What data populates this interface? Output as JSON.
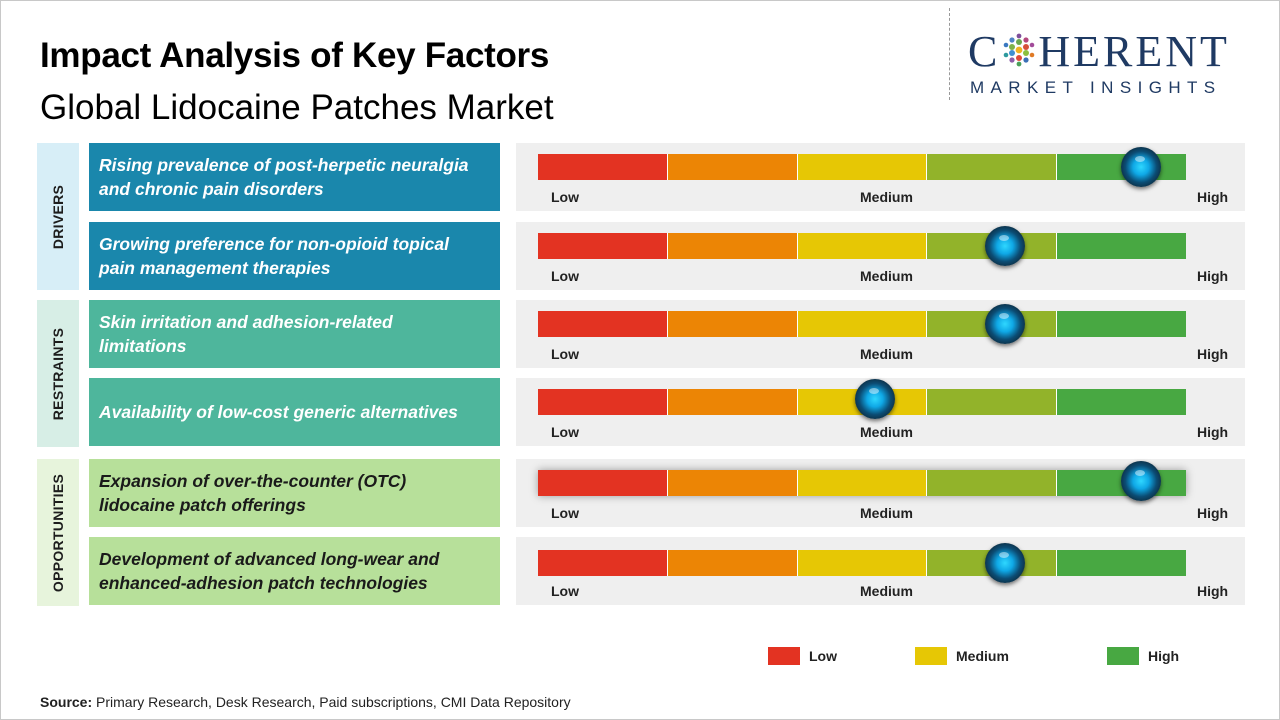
{
  "header": {
    "title": "Impact Analysis of Key Factors",
    "subtitle": "Global Lidocaine Patches Market"
  },
  "logo": {
    "main_left": "C",
    "main_right": "HERENT",
    "sub": "MARKET INSIGHTS"
  },
  "scale_labels": {
    "low": "Low",
    "medium": "Medium",
    "high": "High"
  },
  "colors": {
    "low": "#e33322",
    "low_medium": "#ec8505",
    "medium": "#e6c705",
    "medium_high": "#92b32a",
    "high": "#48a842",
    "drivers": "#1a87ac",
    "restraints": "#4eb69c",
    "opportunities": "#b7e09a"
  },
  "categories": [
    {
      "label": "DRIVERS"
    },
    {
      "label": "RESTRAINTS"
    },
    {
      "label": "OPPORTUNITIES"
    }
  ],
  "factors": [
    {
      "category": "DRIVERS",
      "line1": "Rising prevalence of post-herpetic neuralgia",
      "line2": "and chronic pain disorders",
      "impact_level": 0.93
    },
    {
      "category": "DRIVERS",
      "line1": "Growing preference for non-opioid topical",
      "line2": "pain management therapies",
      "impact_level": 0.72
    },
    {
      "category": "RESTRAINTS",
      "line1": "Skin irritation and adhesion-related",
      "line2": "limitations",
      "impact_level": 0.72
    },
    {
      "category": "RESTRAINTS",
      "line1": "Availability of low-cost generic alternatives",
      "line2": "",
      "impact_level": 0.52
    },
    {
      "category": "OPPORTUNITIES",
      "line1": "Expansion of over-the-counter (OTC)",
      "line2": "lidocaine patch offerings",
      "impact_level": 0.93
    },
    {
      "category": "OPPORTUNITIES",
      "line1": "Development of advanced long-wear and",
      "line2": "enhanced-adhesion patch technologies",
      "impact_level": 0.72
    }
  ],
  "legend": {
    "low": "Low",
    "medium": "Medium",
    "high": "High"
  },
  "source": {
    "label": "Source:",
    "text": "Primary Research, Desk Research, Paid subscriptions, CMI Data Repository"
  }
}
